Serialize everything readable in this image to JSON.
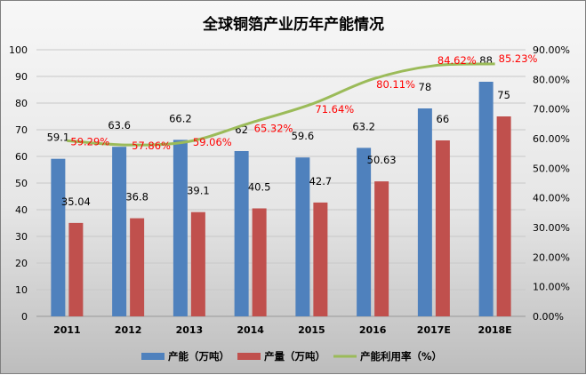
{
  "chart_data": {
    "type": "bar",
    "title": "全球铜箔产业历年产能情况",
    "categories": [
      "2011",
      "2012",
      "2013",
      "2014",
      "2015",
      "2016",
      "2017E",
      "2018E"
    ],
    "series": [
      {
        "name": "产能（万吨）",
        "type": "bar",
        "axis": "left",
        "color": "#4f81bd",
        "values": [
          59.1,
          63.6,
          66.2,
          62,
          59.6,
          63.2,
          78,
          88
        ],
        "labels": [
          "59.1",
          "63.6",
          "66.2",
          "62",
          "59.6",
          "63.2",
          "78",
          "88"
        ]
      },
      {
        "name": "产量（万吨）",
        "type": "bar",
        "axis": "left",
        "color": "#c0504d",
        "values": [
          35.04,
          36.8,
          39.1,
          40.5,
          42.7,
          50.63,
          66,
          75
        ],
        "labels": [
          "35.04",
          "36.8",
          "39.1",
          "40.5",
          "42.7",
          "50.63",
          "66",
          "75"
        ]
      },
      {
        "name": "产能利用率（%）",
        "type": "line",
        "axis": "right",
        "color": "#9bbb59",
        "values": [
          59.29,
          57.86,
          59.06,
          65.32,
          71.64,
          80.11,
          84.62,
          85.23
        ],
        "labels": [
          "59.29%",
          "57.86%",
          "59.06%",
          "65.32%",
          "71.64%",
          "80.11%",
          "84.62%",
          "85.23%"
        ],
        "label_color": "#ff0000"
      }
    ],
    "ylim": [
      0,
      100
    ],
    "yticks": [
      "0",
      "10",
      "20",
      "30",
      "40",
      "50",
      "60",
      "70",
      "80",
      "90",
      "100"
    ],
    "y2lim": [
      0,
      90
    ],
    "y2ticks": [
      "0.00%",
      "10.00%",
      "20.00%",
      "30.00%",
      "40.00%",
      "50.00%",
      "60.00%",
      "70.00%",
      "80.00%",
      "90.00%"
    ],
    "grid": true,
    "legend": "bottom"
  }
}
